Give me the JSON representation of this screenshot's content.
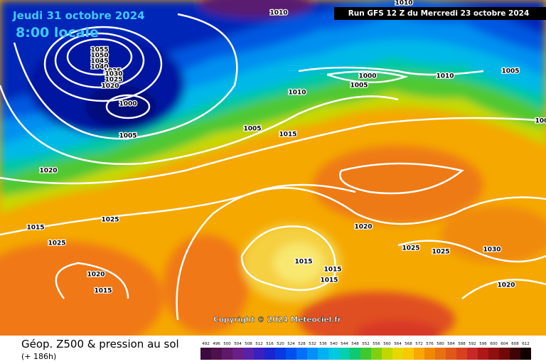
{
  "header": {
    "date": "Jeudi 31 octobre 2024",
    "time": "8:00 locale",
    "run": "Run GFS 12 Z du Mercredi 23 octobre 2024"
  },
  "map": {
    "isobar_labels": [
      1010,
      1010,
      1055,
      1050,
      1045,
      1040,
      1035,
      1030,
      1025,
      1020,
      1000,
      1005,
      1000,
      1005,
      1010,
      1005,
      1010,
      1005,
      1015,
      1020,
      1015,
      1025,
      1025,
      1020,
      1015,
      1020,
      1015,
      1015,
      1015,
      1025,
      1025,
      1030,
      1020,
      100
    ]
  },
  "copyright": "Copyright © 2024 Meteociel.fr",
  "footer": {
    "title": "Géop. Z500 & pression au sol",
    "lead_time": "(+ 186h)"
  },
  "colorbar": {
    "ticks": [
      492,
      496,
      500,
      504,
      508,
      512,
      516,
      520,
      524,
      528,
      532,
      536,
      540,
      544,
      548,
      552,
      556,
      560,
      564,
      568,
      572,
      576,
      580,
      584,
      588,
      592,
      596,
      600,
      604,
      608,
      612
    ],
    "colors": [
      "#3c0a3c",
      "#50104e",
      "#601868",
      "#6a1e88",
      "#5a20a8",
      "#3a20c0",
      "#1a24d0",
      "#0a38e0",
      "#0050f0",
      "#0070f8",
      "#0090f8",
      "#00b0f0",
      "#00c8e0",
      "#00d0b0",
      "#10c870",
      "#40c830",
      "#80d010",
      "#c0d800",
      "#e8d800",
      "#f8c800",
      "#f8a800",
      "#f08800",
      "#e87010",
      "#e05818",
      "#d84020",
      "#c82828",
      "#b01818",
      "#901010",
      "#700808",
      "#400404",
      "#100000"
    ]
  }
}
